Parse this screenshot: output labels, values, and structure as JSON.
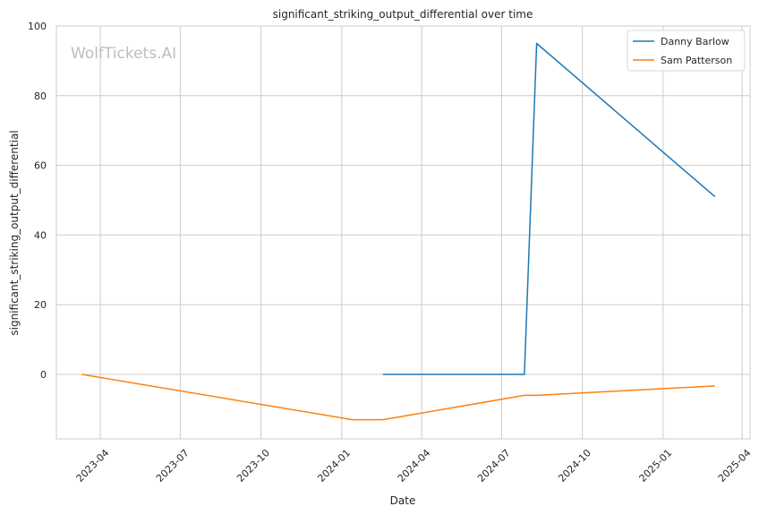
{
  "chart_data": {
    "type": "line",
    "title": "significant_striking_output_differential over time",
    "xlabel": "Date",
    "ylabel": "significant_striking_output_differential",
    "watermark": "WolfTickets.AI",
    "x_ticks": [
      "2023-04-01",
      "2023-07-01",
      "2023-10-01",
      "2024-01-01",
      "2024-04-01",
      "2024-07-01",
      "2024-10-01",
      "2025-01-01",
      "2025-04-01"
    ],
    "x_tick_labels": [
      "2023-04",
      "2023-07",
      "2023-10",
      "2024-01",
      "2024-04",
      "2024-07",
      "2024-10",
      "2025-01",
      "2025-04"
    ],
    "xlim": [
      "2023-02-10",
      "2025-04-10"
    ],
    "y_ticks": [
      0,
      20,
      40,
      60,
      80,
      100
    ],
    "ylim": [
      -18.5,
      100
    ],
    "grid": true,
    "legend_position": "top-right",
    "series": [
      {
        "name": "Danny Barlow",
        "color": "#1f77b4",
        "points": [
          {
            "x": "2024-02-17",
            "y": 0
          },
          {
            "x": "2024-07-27",
            "y": 0
          },
          {
            "x": "2024-08-10",
            "y": 95
          },
          {
            "x": "2025-03-01",
            "y": 51
          }
        ]
      },
      {
        "name": "Sam Patterson",
        "color": "#ff7f0e",
        "points": [
          {
            "x": "2023-03-11",
            "y": 0
          },
          {
            "x": "2024-01-13",
            "y": -13
          },
          {
            "x": "2024-02-17",
            "y": -13
          },
          {
            "x": "2024-07-27",
            "y": -6
          },
          {
            "x": "2024-08-10",
            "y": -6
          },
          {
            "x": "2025-03-01",
            "y": -3.3
          }
        ]
      }
    ]
  }
}
